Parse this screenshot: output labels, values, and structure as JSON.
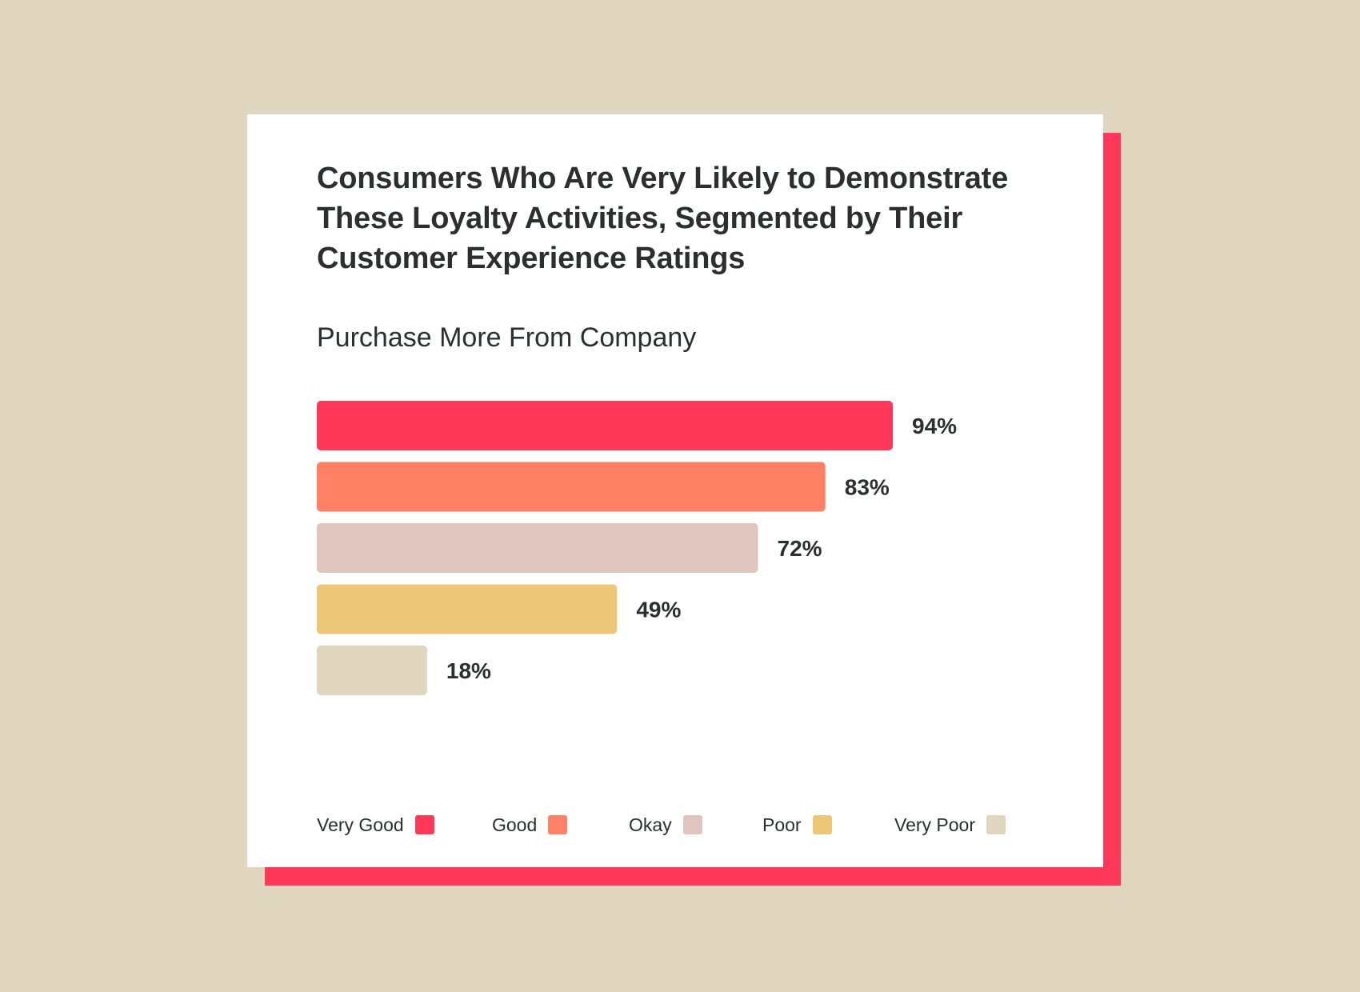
{
  "chart_data": {
    "type": "bar",
    "orientation": "horizontal",
    "title": "Consumers Who Are Very Likely to Demonstrate These Loyalty Activities, Segmented by Their Customer Experience Ratings",
    "subtitle": "Purchase More From Company",
    "categories": [
      "Very Good",
      "Good",
      "Okay",
      "Poor",
      "Very Poor"
    ],
    "values": [
      94,
      83,
      72,
      49,
      18
    ],
    "value_labels": [
      "94%",
      "83%",
      "72%",
      "49%",
      "18%"
    ],
    "unit": "%",
    "xlim": [
      0,
      100
    ],
    "colors": [
      "#ff3759",
      "#ff8065",
      "#e0c5bf",
      "#edc778",
      "#e0d5bf"
    ],
    "legend_position": "bottom",
    "grid": false
  },
  "legend": [
    {
      "label": "Very Good",
      "color": "#ff3759"
    },
    {
      "label": "Good",
      "color": "#ff8065"
    },
    {
      "label": "Okay",
      "color": "#e0c5bf"
    },
    {
      "label": "Poor",
      "color": "#edc778"
    },
    {
      "label": "Very Poor",
      "color": "#e0d5bf"
    }
  ],
  "colors": {
    "background": "#e0d5bf",
    "card": "#ffffff",
    "card_shadow": "#ff3759",
    "text": "#2b2f2d"
  }
}
